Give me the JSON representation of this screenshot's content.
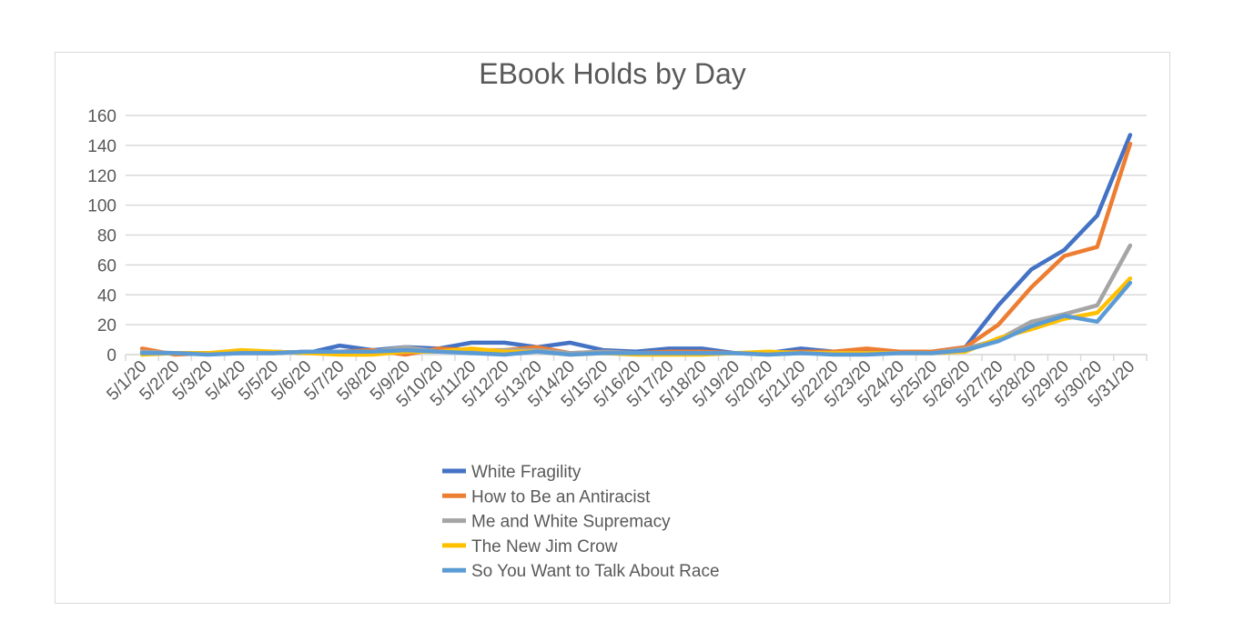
{
  "chart_data": {
    "type": "line",
    "title": "EBook Holds by Day",
    "xlabel": "",
    "ylabel": "",
    "ylim": [
      0,
      160
    ],
    "yticks": [
      0,
      20,
      40,
      60,
      80,
      100,
      120,
      140,
      160
    ],
    "grid": true,
    "legend_position": "bottom",
    "categories": [
      "5/1/20",
      "5/2/20",
      "5/3/20",
      "5/4/20",
      "5/5/20",
      "5/6/20",
      "5/7/20",
      "5/8/20",
      "5/9/20",
      "5/10/20",
      "5/11/20",
      "5/12/20",
      "5/13/20",
      "5/14/20",
      "5/15/20",
      "5/16/20",
      "5/17/20",
      "5/18/20",
      "5/19/20",
      "5/20/20",
      "5/21/20",
      "5/22/20",
      "5/23/20",
      "5/24/20",
      "5/25/20",
      "5/26/20",
      "5/27/20",
      "5/28/20",
      "5/29/20",
      "5/30/20",
      "5/31/20"
    ],
    "series": [
      {
        "name": "White Fragility",
        "color": "#4472C4",
        "values": [
          1,
          1,
          1,
          1,
          2,
          1,
          6,
          3,
          5,
          4,
          8,
          8,
          5,
          8,
          3,
          2,
          4,
          4,
          1,
          1,
          4,
          2,
          2,
          2,
          2,
          5,
          33,
          57,
          70,
          93,
          147
        ]
      },
      {
        "name": "How to Be an Antiracist",
        "color": "#ED7D31",
        "values": [
          4,
          0,
          1,
          1,
          1,
          2,
          2,
          3,
          0,
          4,
          3,
          3,
          5,
          1,
          2,
          1,
          2,
          2,
          1,
          1,
          2,
          2,
          4,
          2,
          2,
          5,
          20,
          45,
          66,
          72,
          141
        ]
      },
      {
        "name": "Me and White Supremacy",
        "color": "#A5A5A5",
        "values": [
          2,
          1,
          1,
          1,
          1,
          2,
          2,
          2,
          5,
          2,
          2,
          3,
          3,
          1,
          2,
          1,
          1,
          1,
          1,
          0,
          1,
          1,
          1,
          1,
          1,
          4,
          10,
          22,
          27,
          33,
          73
        ]
      },
      {
        "name": "The New Jim Crow",
        "color": "#FFC000",
        "values": [
          0,
          1,
          1,
          3,
          2,
          1,
          0,
          0,
          2,
          2,
          4,
          2,
          2,
          0,
          1,
          0,
          0,
          0,
          1,
          2,
          1,
          1,
          1,
          1,
          1,
          2,
          11,
          17,
          24,
          28,
          51
        ]
      },
      {
        "name": "So You Want to Talk About Race",
        "color": "#5B9BD5",
        "values": [
          1,
          1,
          0,
          1,
          1,
          2,
          2,
          2,
          3,
          2,
          1,
          0,
          2,
          0,
          1,
          1,
          1,
          1,
          1,
          0,
          1,
          0,
          0,
          1,
          1,
          3,
          9,
          19,
          26,
          22,
          48
        ]
      }
    ]
  }
}
